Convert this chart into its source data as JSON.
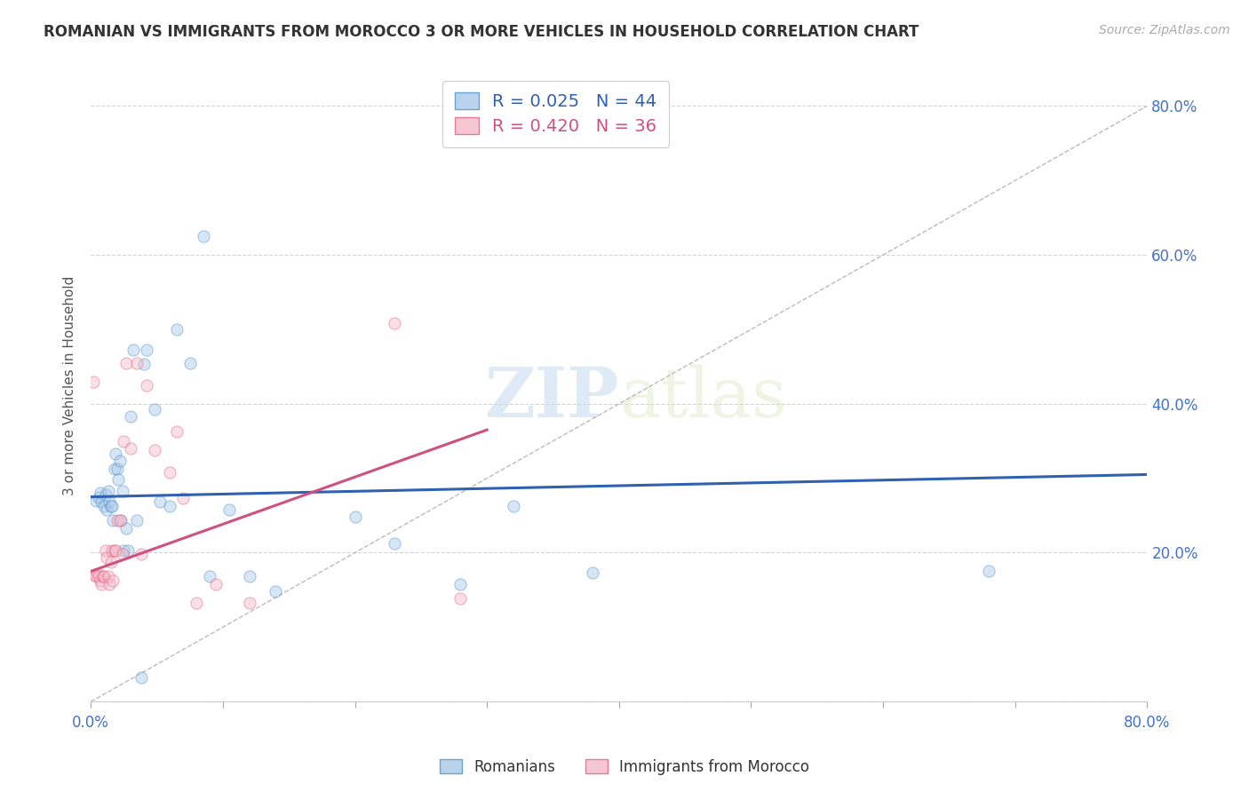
{
  "title": "ROMANIAN VS IMMIGRANTS FROM MOROCCO 3 OR MORE VEHICLES IN HOUSEHOLD CORRELATION CHART",
  "source": "Source: ZipAtlas.com",
  "ylabel": "3 or more Vehicles in Household",
  "xlim": [
    0,
    0.8
  ],
  "ylim": [
    0,
    0.85
  ],
  "blue_R": 0.025,
  "blue_N": 44,
  "pink_R": 0.42,
  "pink_N": 36,
  "legend1_label": "Romanians",
  "legend2_label": "Immigrants from Morocco",
  "watermark_zip": "ZIP",
  "watermark_atlas": "atlas",
  "background_color": "#ffffff",
  "scatter_alpha": 0.45,
  "scatter_size": 90,
  "blue_color": "#a8c8e8",
  "pink_color": "#f4b8c8",
  "blue_edge_color": "#5090c8",
  "pink_edge_color": "#e06080",
  "blue_line_color": "#3060b0",
  "pink_line_color": "#d05080",
  "grid_color": "#d0d0d0",
  "right_axis_color": "#4472c4",
  "blue_line_x0": 0.0,
  "blue_line_y0": 0.275,
  "blue_line_x1": 0.8,
  "blue_line_y1": 0.305,
  "pink_line_x0": 0.0,
  "pink_line_y0": 0.175,
  "pink_line_x1": 0.3,
  "pink_line_y1": 0.365,
  "blue_scatter_x": [
    0.004,
    0.006,
    0.007,
    0.008,
    0.01,
    0.011,
    0.012,
    0.013,
    0.014,
    0.015,
    0.016,
    0.017,
    0.018,
    0.019,
    0.02,
    0.021,
    0.022,
    0.023,
    0.024,
    0.025,
    0.027,
    0.028,
    0.03,
    0.032,
    0.035,
    0.04,
    0.042,
    0.048,
    0.052,
    0.06,
    0.065,
    0.075,
    0.085,
    0.09,
    0.105,
    0.12,
    0.14,
    0.2,
    0.23,
    0.28,
    0.32,
    0.38,
    0.68,
    0.038
  ],
  "blue_scatter_y": [
    0.27,
    0.275,
    0.28,
    0.268,
    0.263,
    0.278,
    0.258,
    0.283,
    0.268,
    0.263,
    0.263,
    0.243,
    0.313,
    0.333,
    0.313,
    0.298,
    0.323,
    0.243,
    0.283,
    0.203,
    0.233,
    0.203,
    0.383,
    0.473,
    0.243,
    0.453,
    0.473,
    0.393,
    0.268,
    0.263,
    0.5,
    0.455,
    0.625,
    0.168,
    0.258,
    0.168,
    0.148,
    0.248,
    0.213,
    0.158,
    0.263,
    0.173,
    0.175,
    0.033
  ],
  "pink_scatter_x": [
    0.002,
    0.003,
    0.004,
    0.005,
    0.006,
    0.007,
    0.008,
    0.009,
    0.01,
    0.011,
    0.012,
    0.013,
    0.014,
    0.015,
    0.016,
    0.017,
    0.018,
    0.019,
    0.02,
    0.022,
    0.024,
    0.025,
    0.027,
    0.03,
    0.035,
    0.038,
    0.042,
    0.048,
    0.06,
    0.065,
    0.07,
    0.08,
    0.095,
    0.12,
    0.23,
    0.28
  ],
  "pink_scatter_y": [
    0.43,
    0.17,
    0.168,
    0.172,
    0.168,
    0.162,
    0.158,
    0.168,
    0.168,
    0.203,
    0.193,
    0.168,
    0.158,
    0.188,
    0.203,
    0.163,
    0.203,
    0.203,
    0.243,
    0.243,
    0.198,
    0.35,
    0.455,
    0.34,
    0.455,
    0.198,
    0.425,
    0.338,
    0.308,
    0.363,
    0.273,
    0.133,
    0.158,
    0.133,
    0.508,
    0.138
  ]
}
